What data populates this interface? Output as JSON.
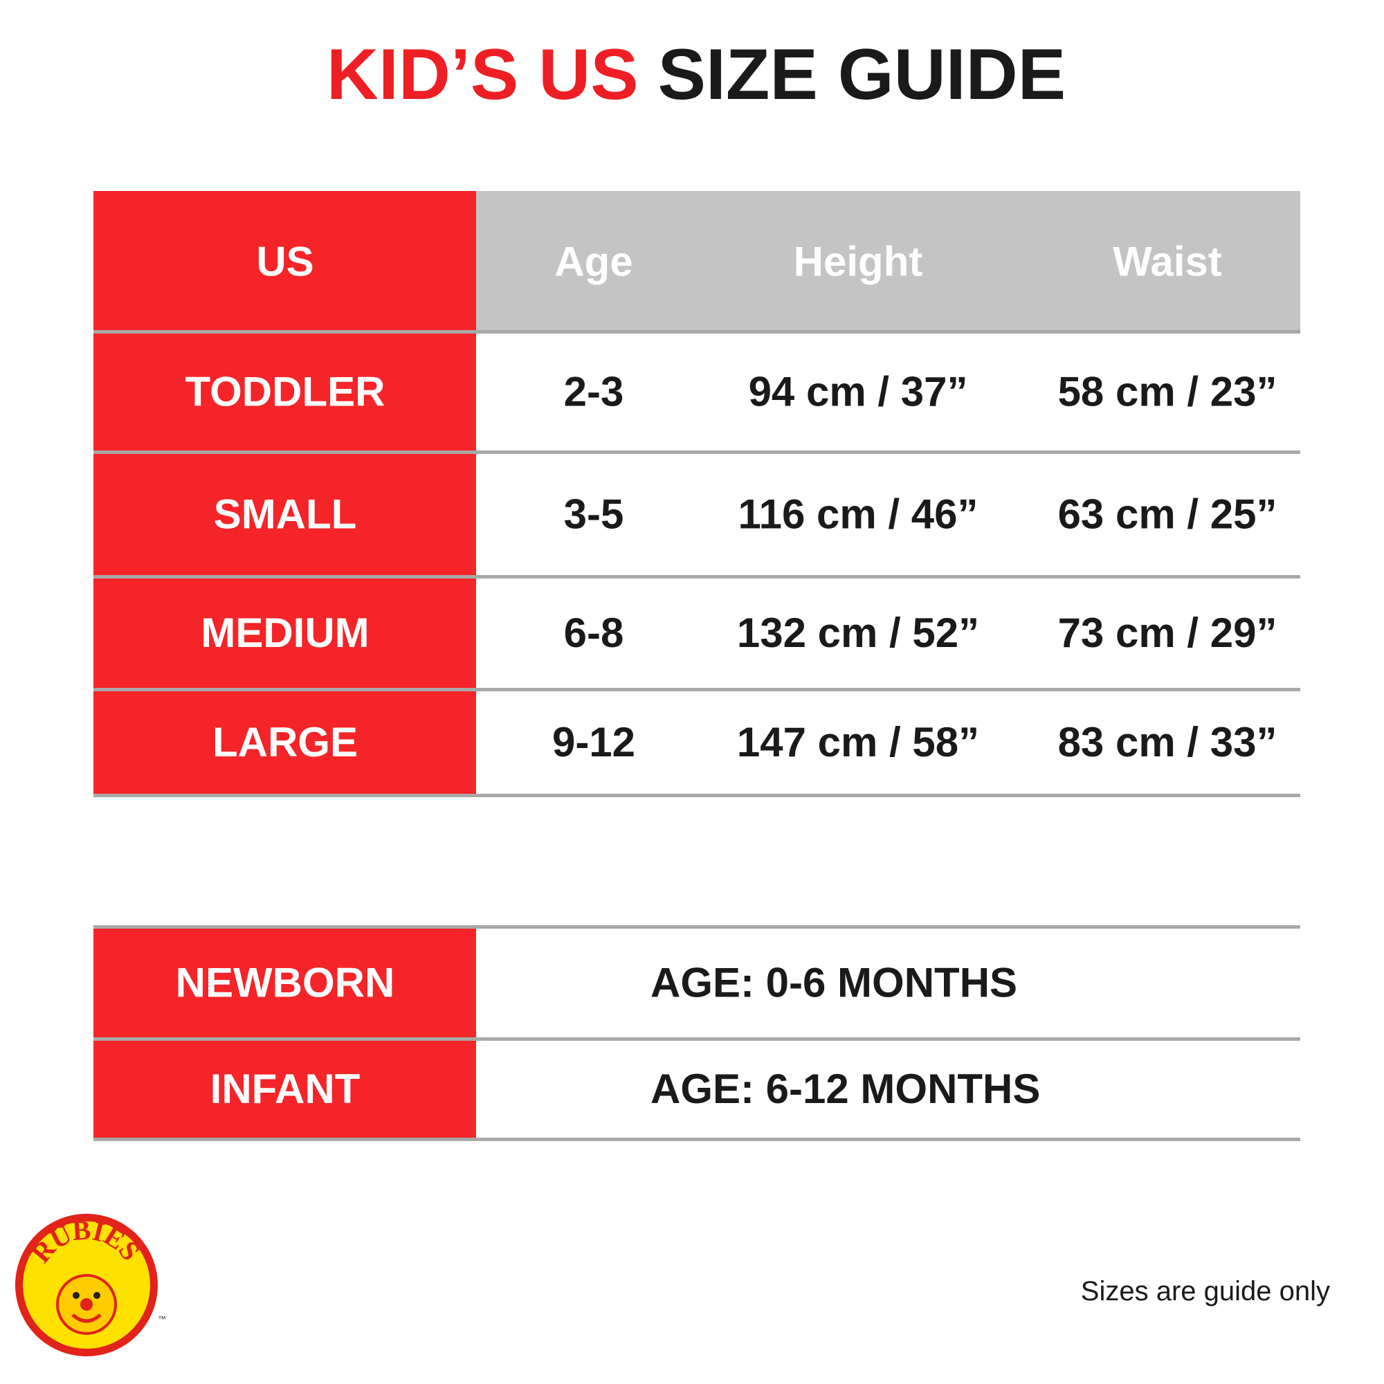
{
  "title": {
    "highlight": "KID’S US",
    "rest": "SIZE GUIDE"
  },
  "table": {
    "header": [
      "US",
      "Age",
      "Height",
      "Waist"
    ],
    "rows": [
      [
        "TODDLER",
        "2-3",
        "94 cm / 37”",
        "58 cm / 23”"
      ],
      [
        "SMALL",
        "3-5",
        "116 cm / 46”",
        "63 cm / 25”"
      ],
      [
        "MEDIUM",
        "6-8",
        "132 cm / 52”",
        "73 cm / 29”"
      ],
      [
        "LARGE",
        "9-12",
        "147 cm / 58”",
        "83 cm / 33”"
      ]
    ]
  },
  "age_table": {
    "rows": [
      [
        "NEWBORN",
        "AGE: 0-6 MONTHS"
      ],
      [
        "INFANT",
        "AGE: 6-12 MONTHS"
      ]
    ]
  },
  "logo": {
    "text": "RUBIES",
    "trademark": "™"
  },
  "footnote": "Sizes are guide only"
}
